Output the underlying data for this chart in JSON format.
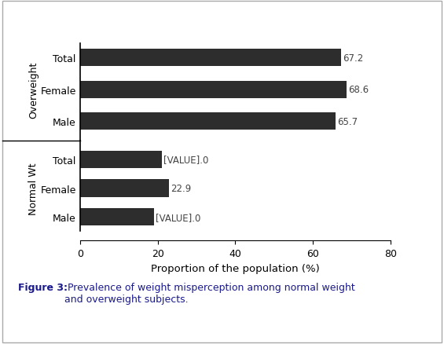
{
  "groups": [
    {
      "label": "Overweight",
      "bars": [
        {
          "category": "Total",
          "value": 67.2,
          "label_text": "67.2"
        },
        {
          "category": "Female",
          "value": 68.6,
          "label_text": "68.6"
        },
        {
          "category": "Male",
          "value": 65.7,
          "label_text": "65.7"
        }
      ]
    },
    {
      "label": "Normal Wt",
      "bars": [
        {
          "category": "Total",
          "value": 21.0,
          "label_text": "[VALUE].0"
        },
        {
          "category": "Female",
          "value": 22.9,
          "label_text": "22.9"
        },
        {
          "category": "Male",
          "value": 19.0,
          "label_text": "[VALUE].0"
        }
      ]
    }
  ],
  "bar_color": "#2d2d2d",
  "xlabel": "Proportion of the population (%)",
  "xlim": [
    0,
    80
  ],
  "xticks": [
    0,
    20,
    40,
    60,
    80
  ],
  "figure_caption_bold": "Figure 3:",
  "figure_caption_rest": " Prevalence of weight misperception among normal weight\nand overweight subjects.",
  "background_color": "#ffffff",
  "bar_height": 0.55,
  "group_separator_color": "#000000",
  "label_fontsize": 8.5,
  "tick_fontsize": 9,
  "ylabel_fontsize": 9,
  "xlabel_fontsize": 9.5
}
